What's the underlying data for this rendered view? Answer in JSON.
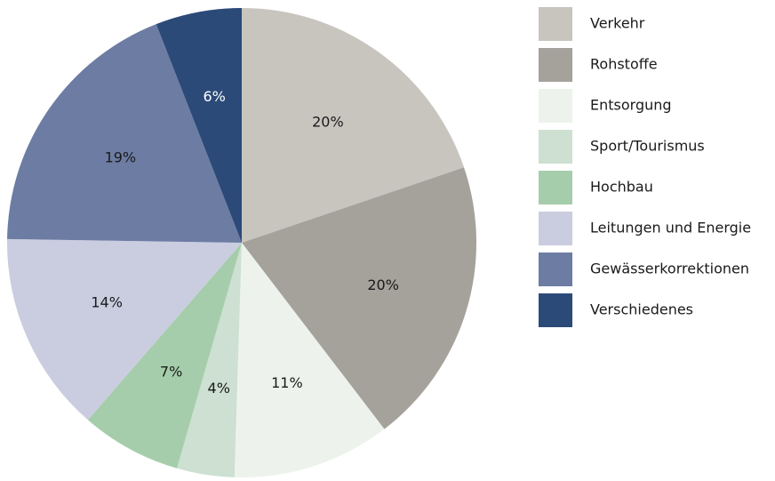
{
  "chart_data": {
    "type": "pie",
    "categories": [
      "Verkehr",
      "Rohstoffe",
      "Entsorgung",
      "Sport/Tourismus",
      "Hochbau",
      "Leitungen und Energie",
      "Gewässerkorrektionen",
      "Verschiedenes"
    ],
    "values": [
      20,
      20,
      11,
      4,
      7,
      14,
      19,
      6
    ],
    "value_labels": [
      "20%",
      "20%",
      "11%",
      "4%",
      "7%",
      "14%",
      "19%",
      "6%"
    ],
    "colors": [
      "#c8c5bf",
      "#a5a19b",
      "#edf3ec",
      "#cde0d1",
      "#a6cdab",
      "#cacde0",
      "#6d7ca3",
      "#2b4a78"
    ],
    "legend": "right"
  }
}
